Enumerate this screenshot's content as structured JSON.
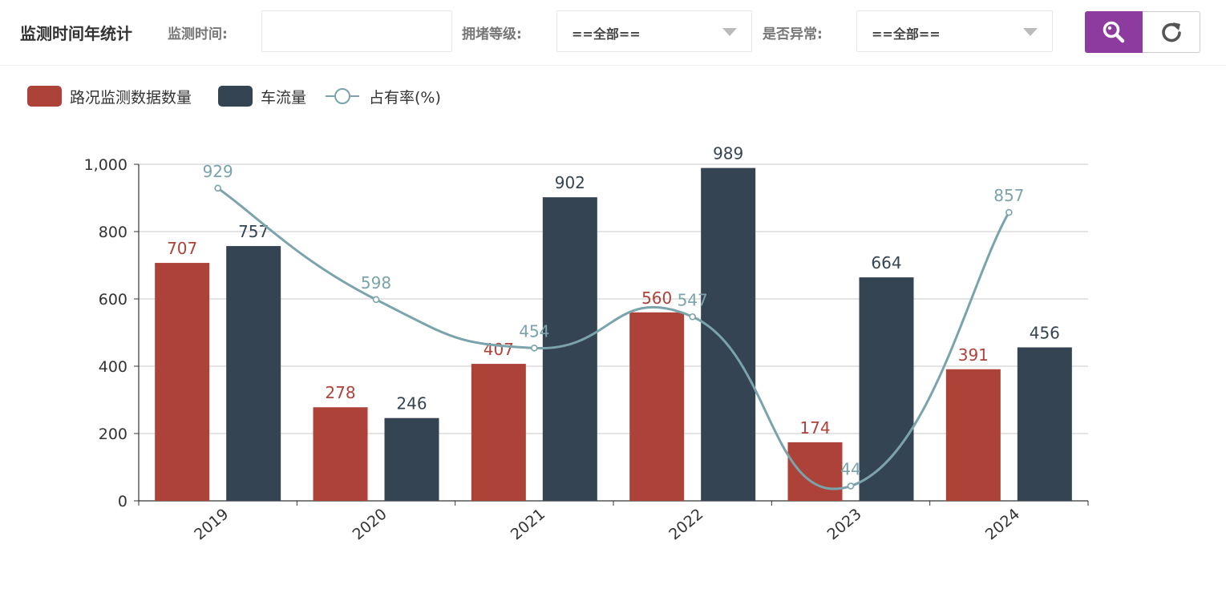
{
  "toolbar": {
    "title": "监测时间年统计",
    "time_label": "监测时间:",
    "time_value": "",
    "congestion_label": "拥堵等级:",
    "congestion_value": "==全部==",
    "abnormal_label": "是否异常:",
    "abnormal_value": "==全部==",
    "search_icon": "search-icon",
    "refresh_icon": "refresh-icon",
    "accent_color": "#8e3ba0"
  },
  "chart_data": {
    "type": "bar",
    "categories": [
      "2019",
      "2020",
      "2021",
      "2022",
      "2023",
      "2024"
    ],
    "series": [
      {
        "name": "路况监测数据数量",
        "type": "bar",
        "color": "#ad4239",
        "values": [
          707,
          278,
          407,
          560,
          174,
          391
        ]
      },
      {
        "name": "车流量",
        "type": "bar",
        "color": "#354453",
        "values": [
          757,
          246,
          902,
          989,
          664,
          456
        ]
      },
      {
        "name": "占有率(%)",
        "type": "line",
        "color": "#7aa3ab",
        "values": [
          929,
          598,
          454,
          547,
          44,
          857
        ]
      }
    ],
    "yticks": [
      "0",
      "200",
      "400",
      "600",
      "800",
      "1,000"
    ],
    "ylim": [
      0,
      1000
    ],
    "grid": true,
    "legend_position": "top-left"
  }
}
